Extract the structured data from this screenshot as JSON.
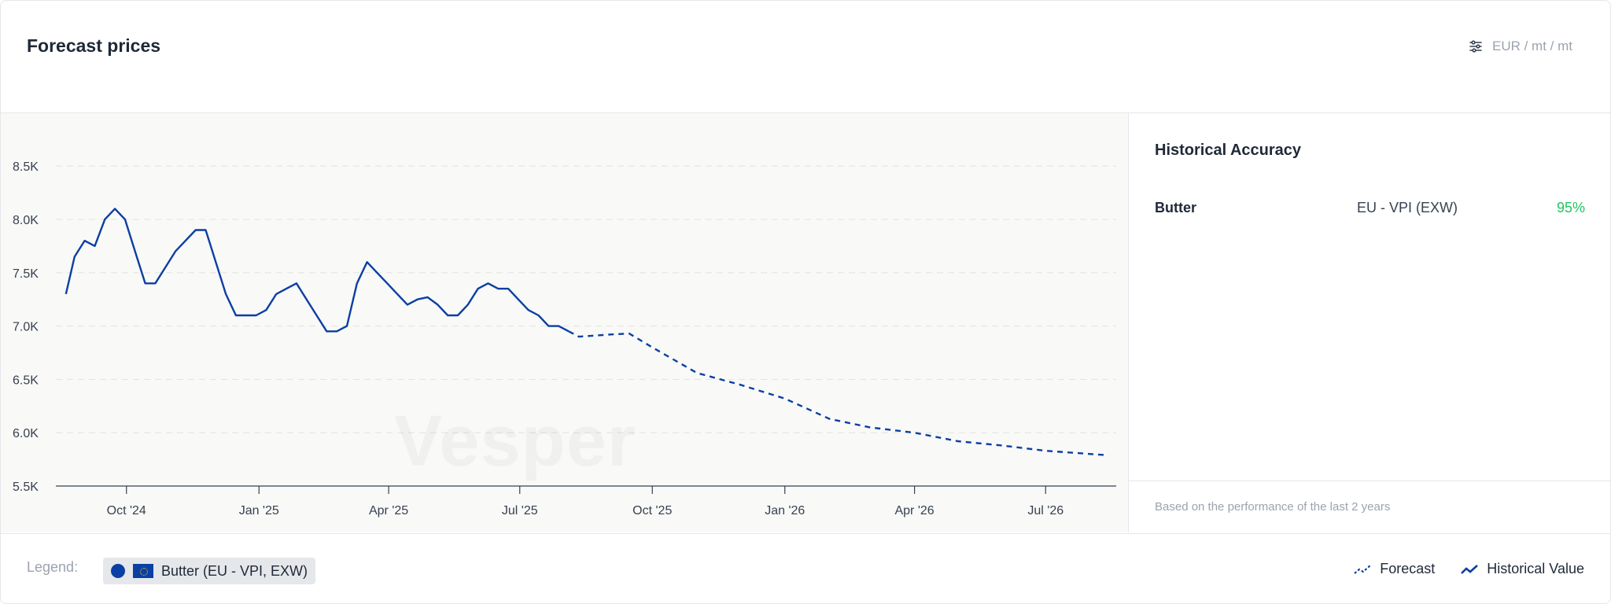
{
  "header": {
    "title": "Forecast prices",
    "units": "EUR / mt / mt"
  },
  "watermark": "Vesper",
  "accuracy": {
    "title": "Historical Accuracy",
    "product": "Butter",
    "region": "EU - VPI (EXW)",
    "value": "95%",
    "footer": "Based on the performance of the last 2 years"
  },
  "legend": {
    "label": "Legend:",
    "item": "Butter (EU - VPI, EXW)",
    "forecast_label": "Forecast",
    "historical_label": "Historical Value"
  },
  "colors": {
    "line": "#0b3fa3",
    "accent_green": "#22c55e"
  },
  "chart_data": {
    "type": "line",
    "title": "",
    "xlabel": "",
    "ylabel": "",
    "ylim": [
      5500,
      8700
    ],
    "yticks": [
      5500,
      6000,
      6500,
      7000,
      7500,
      8000,
      8500
    ],
    "ytick_labels": [
      "5.5K",
      "6.0K",
      "6.5K",
      "7.0K",
      "7.5K",
      "8.0K",
      "8.5K"
    ],
    "xticks": [
      "2024-10-01",
      "2025-01-01",
      "2025-04-01",
      "2025-07-01",
      "2025-10-01",
      "2026-01-01",
      "2026-04-01",
      "2026-07-01"
    ],
    "xtick_labels": [
      "Oct '24",
      "Jan '25",
      "Apr '25",
      "Jul '25",
      "Oct '25",
      "Jan '26",
      "Apr '26",
      "Jul '26"
    ],
    "xlim": [
      "2024-08-13",
      "2026-08-19"
    ],
    "grid": true,
    "series": [
      {
        "name": "Historical Value",
        "style": "solid",
        "x": [
          "2024-08-20",
          "2024-08-26",
          "2024-09-02",
          "2024-09-09",
          "2024-09-16",
          "2024-09-23",
          "2024-09-30",
          "2024-10-07",
          "2024-10-14",
          "2024-10-21",
          "2024-10-28",
          "2024-11-04",
          "2024-11-11",
          "2024-11-18",
          "2024-11-25",
          "2024-12-02",
          "2024-12-09",
          "2024-12-16",
          "2024-12-23",
          "2024-12-30",
          "2025-01-06",
          "2025-01-13",
          "2025-01-20",
          "2025-01-27",
          "2025-02-03",
          "2025-02-10",
          "2025-02-17",
          "2025-02-24",
          "2025-03-03",
          "2025-03-10",
          "2025-03-17",
          "2025-03-24",
          "2025-03-31",
          "2025-04-07",
          "2025-04-14",
          "2025-04-21",
          "2025-04-28",
          "2025-05-05",
          "2025-05-12",
          "2025-05-19",
          "2025-05-26",
          "2025-06-02",
          "2025-06-09",
          "2025-06-16",
          "2025-06-23",
          "2025-06-30",
          "2025-07-07",
          "2025-07-14",
          "2025-07-21",
          "2025-07-28",
          "2025-08-04"
        ],
        "y": [
          7300,
          7650,
          7800,
          7750,
          8000,
          8100,
          8000,
          7700,
          7400,
          7400,
          7550,
          7700,
          7800,
          7900,
          7900,
          7600,
          7300,
          7100,
          7100,
          7100,
          7150,
          7300,
          7350,
          7400,
          7250,
          7100,
          6950,
          6950,
          7000,
          7400,
          7600,
          7500,
          7400,
          7300,
          7200,
          7250,
          7270,
          7200,
          7100,
          7100,
          7200,
          7350,
          7400,
          7350,
          7350,
          7250,
          7150,
          7100,
          7000,
          7000,
          6950
        ]
      },
      {
        "name": "Forecast",
        "style": "dashed",
        "x": [
          "2025-08-04",
          "2025-08-11",
          "2025-09-01",
          "2025-09-15",
          "2025-10-01",
          "2025-11-01",
          "2025-12-01",
          "2026-01-01",
          "2026-02-01",
          "2026-03-01",
          "2026-04-01",
          "2026-05-01",
          "2026-06-01",
          "2026-07-01",
          "2026-08-12"
        ],
        "y": [
          6950,
          6900,
          6920,
          6930,
          6800,
          6560,
          6450,
          6320,
          6130,
          6050,
          6000,
          5920,
          5880,
          5830,
          5790
        ]
      }
    ]
  }
}
